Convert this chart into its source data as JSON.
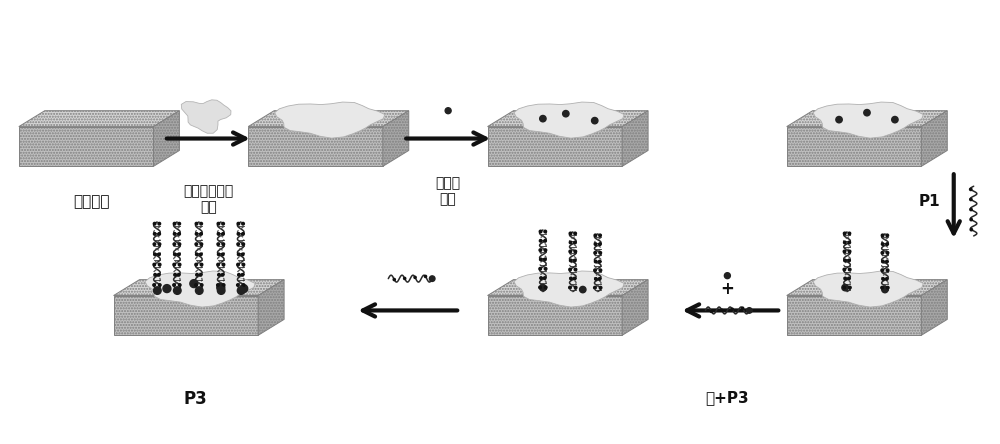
{
  "bg_color": "#ffffff",
  "elec_front": "#c0c0c0",
  "elec_top": "#d5d5d5",
  "elec_right": "#a8a8a8",
  "elec_edge": "#808080",
  "coating_color": "#e8e8e8",
  "coating_edge": "#b0b0b0",
  "dot_color": "#222222",
  "arrow_color": "#111111",
  "text_color": "#111111",
  "label_1": "玻碳电极",
  "label_2": "类石墨烯相氮\n化碳",
  "label_3": "纳米金\n额粒",
  "label_4": "P1",
  "label_5": "汞+P3",
  "label_6": "P3",
  "font_size": 10
}
